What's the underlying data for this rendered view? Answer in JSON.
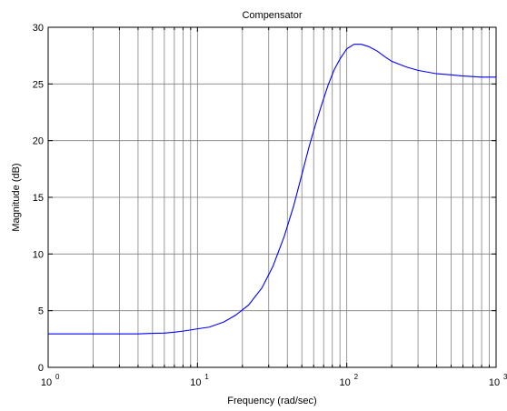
{
  "chart_data": {
    "type": "line",
    "title": "Compensator",
    "xlabel": "Frequency  (rad/sec)",
    "ylabel": "Magnitude (dB)",
    "xscale": "log",
    "xlim": [
      1,
      1000
    ],
    "ylim": [
      0,
      30
    ],
    "grid": true,
    "legend": "none",
    "x_ticks": [
      {
        "base": "10",
        "exp": "0"
      },
      {
        "base": "10",
        "exp": "1"
      },
      {
        "base": "10",
        "exp": "2"
      },
      {
        "base": "10",
        "exp": "3"
      }
    ],
    "y_ticks": [
      "0",
      "5",
      "10",
      "15",
      "20",
      "25",
      "30"
    ],
    "line_color": "#0000ff",
    "series": [
      {
        "x": [
          1,
          2,
          3,
          4,
          5,
          6,
          7,
          8,
          9,
          10,
          12,
          15,
          18,
          22,
          27,
          32,
          38,
          44,
          50,
          56,
          62,
          68,
          75,
          82,
          90,
          100,
          112,
          125,
          140,
          160,
          180,
          200,
          250,
          300,
          400,
          500,
          600,
          800,
          1000
        ],
        "y": [
          2.95,
          2.95,
          2.95,
          2.95,
          3.0,
          3.02,
          3.1,
          3.2,
          3.3,
          3.4,
          3.55,
          4.0,
          4.6,
          5.5,
          7.0,
          8.9,
          11.5,
          14.2,
          17.0,
          19.5,
          21.5,
          23.2,
          24.9,
          26.2,
          27.2,
          28.1,
          28.5,
          28.5,
          28.3,
          27.9,
          27.4,
          27.0,
          26.5,
          26.2,
          25.9,
          25.8,
          25.7,
          25.6,
          25.6
        ]
      }
    ]
  }
}
